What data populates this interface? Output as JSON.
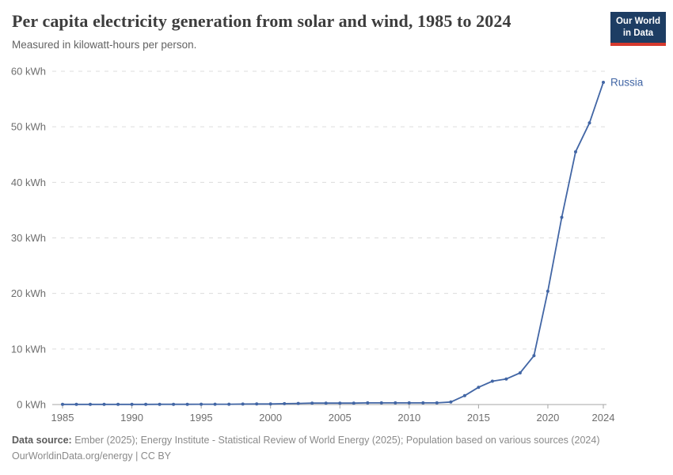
{
  "header": {
    "title": "Per capita electricity generation from solar and wind, 1985 to 2024",
    "subtitle": "Measured in kilowatt-hours per person.",
    "logo": {
      "line1": "Our World",
      "line2": "in Data"
    }
  },
  "colors": {
    "series_blue": "#4266a5",
    "gridline": "#dcdcdc",
    "axis_line": "#a5a5a5",
    "logo_bg": "#1d3d63",
    "logo_red": "#d5392d",
    "title_text": "#3d3d3d",
    "tick_text": "#6e6e6e"
  },
  "chart_data": {
    "type": "line",
    "title": "Per capita electricity generation from solar and wind, 1985 to 2024",
    "subtitle": "Measured in kilowatt-hours per person.",
    "xlabel": "",
    "ylabel": "kWh per person",
    "xlim": [
      1985,
      2024
    ],
    "ylim": [
      0,
      60
    ],
    "grid": "horizontal-dashed",
    "legend": "end-label",
    "x": [
      1985,
      1986,
      1987,
      1988,
      1989,
      1990,
      1991,
      1992,
      1993,
      1994,
      1995,
      1996,
      1997,
      1998,
      1999,
      2000,
      2001,
      2002,
      2003,
      2004,
      2005,
      2006,
      2007,
      2008,
      2009,
      2010,
      2011,
      2012,
      2013,
      2014,
      2015,
      2016,
      2017,
      2018,
      2019,
      2020,
      2021,
      2022,
      2023,
      2024
    ],
    "series": [
      {
        "name": "Russia",
        "color": "#4266a5",
        "values": [
          0.03,
          0.03,
          0.03,
          0.03,
          0.03,
          0.03,
          0.03,
          0.04,
          0.04,
          0.04,
          0.05,
          0.05,
          0.06,
          0.08,
          0.1,
          0.1,
          0.15,
          0.2,
          0.25,
          0.25,
          0.25,
          0.25,
          0.3,
          0.3,
          0.3,
          0.3,
          0.3,
          0.3,
          0.45,
          1.6,
          3.1,
          4.2,
          4.6,
          5.7,
          8.8,
          20.4,
          33.7,
          45.5,
          50.7,
          58
        ]
      }
    ],
    "x_ticks": [
      1985,
      1990,
      1995,
      2000,
      2005,
      2010,
      2015,
      2020,
      2024
    ],
    "x_tick_labels": [
      "1985",
      "1990",
      "1995",
      "2000",
      "2005",
      "2010",
      "2015",
      "2020",
      "2024"
    ],
    "y_ticks": [
      0,
      10,
      20,
      30,
      40,
      50,
      60
    ],
    "y_tick_labels": [
      "0 kWh",
      "10 kWh",
      "20 kWh",
      "30 kWh",
      "40 kWh",
      "50 kWh",
      "60 kWh"
    ]
  },
  "footer": {
    "source_label": "Data source:",
    "source_text": " Ember (2025); Energy Institute - Statistical Review of World Energy (2025); Population based on various sources (2024)",
    "link_line": "OurWorldinData.org/energy | CC BY"
  }
}
